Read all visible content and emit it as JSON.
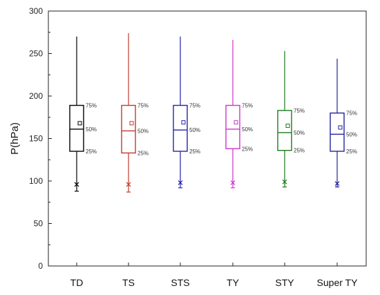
{
  "chart_data": {
    "type": "box",
    "title": "",
    "xlabel": "",
    "ylabel": "P(hPa)",
    "ylim": [
      0,
      300
    ],
    "yticks": [
      0,
      50,
      100,
      150,
      200,
      250,
      300
    ],
    "grid": false,
    "legend": "none",
    "percentile_labels": {
      "p75": "75%",
      "p50": "50%",
      "p25": "25%"
    },
    "series": [
      {
        "category": "TD",
        "color": "#000000",
        "whisker_low": 88,
        "p25": 135,
        "median": 161,
        "p75": 189,
        "whisker_high": 270,
        "mean": 168,
        "min_marker": 96
      },
      {
        "category": "TS",
        "color": "#c0392b",
        "whisker_low": 87,
        "p25": 133,
        "median": 159,
        "p75": 189,
        "whisker_high": 274,
        "mean": 168,
        "min_marker": 96
      },
      {
        "category": "STS",
        "color": "#2222aa",
        "whisker_low": 92,
        "p25": 135,
        "median": 160,
        "p75": 189,
        "whisker_high": 270,
        "mean": 169,
        "min_marker": 98
      },
      {
        "category": "TY",
        "color": "#cc33cc",
        "whisker_low": 92,
        "p25": 138,
        "median": 161,
        "p75": 189,
        "whisker_high": 266,
        "mean": 169,
        "min_marker": 98
      },
      {
        "category": "STY",
        "color": "#1a7a1a",
        "whisker_low": 93,
        "p25": 136,
        "median": 157,
        "p75": 183,
        "whisker_high": 253,
        "mean": 165,
        "min_marker": 99
      },
      {
        "category": "Super TY",
        "color": "#22229a",
        "whisker_low": 93,
        "p25": 135,
        "median": 155,
        "p75": 180,
        "whisker_high": 244,
        "mean": 163,
        "min_marker": 97
      }
    ]
  }
}
